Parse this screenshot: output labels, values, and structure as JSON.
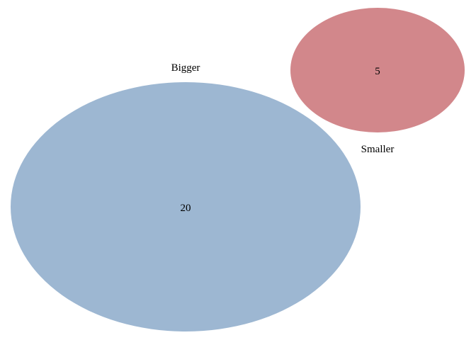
{
  "diagram": {
    "type": "venn",
    "sets": [
      {
        "id": "bigger",
        "label": "Bigger",
        "count": "20",
        "size": 20,
        "color": "#9db7d2"
      },
      {
        "id": "smaller",
        "label": "Smaller",
        "count": "5",
        "size": 5,
        "color": "#d2878b"
      }
    ],
    "intersection": 0
  }
}
